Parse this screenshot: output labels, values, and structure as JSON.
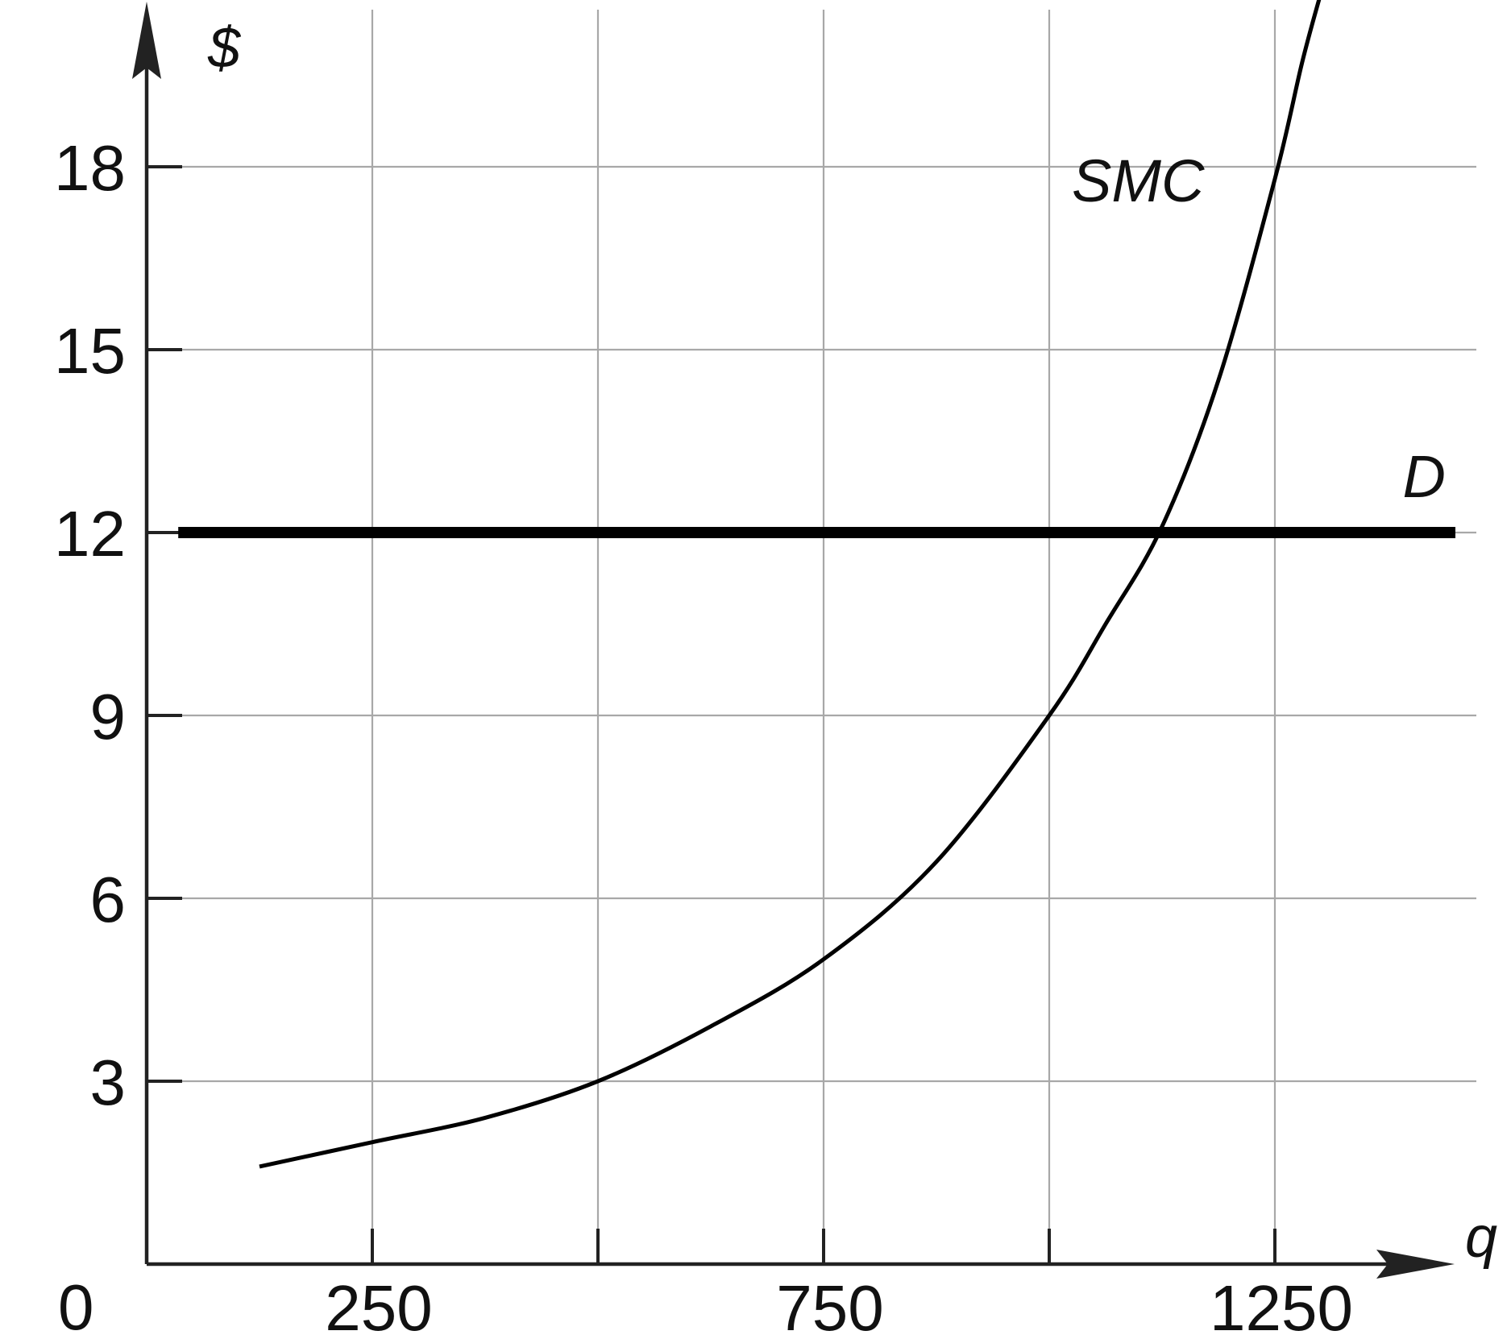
{
  "chart_data": {
    "type": "line",
    "title": "",
    "xlabel": "q",
    "ylabel": "$",
    "xlim": [
      0,
      1500
    ],
    "ylim": [
      0,
      20
    ],
    "x_ticks": [
      250,
      500,
      750,
      1000,
      1250
    ],
    "x_tick_labels": [
      "250",
      "",
      "750",
      "",
      "1250"
    ],
    "y_ticks": [
      3,
      6,
      9,
      12,
      15,
      18
    ],
    "y_tick_labels": [
      "3",
      "6",
      "9",
      "12",
      "15",
      "18"
    ],
    "origin_label": "0",
    "grid": true,
    "series": [
      {
        "name": "SMC",
        "x": [
          125,
          250,
          375,
          500,
          625,
          750,
          875,
          1000,
          1062.5,
          1125,
          1187.5,
          1250,
          1280,
          1300
        ],
        "y": [
          1.6,
          2.0,
          2.4,
          3.0,
          3.9,
          5.0,
          6.6,
          9.0,
          10.5,
          12.1,
          14.5,
          17.8,
          19.7,
          20.8
        ]
      },
      {
        "name": "D",
        "x": [
          35,
          1450
        ],
        "y": [
          12,
          12
        ]
      }
    ]
  }
}
